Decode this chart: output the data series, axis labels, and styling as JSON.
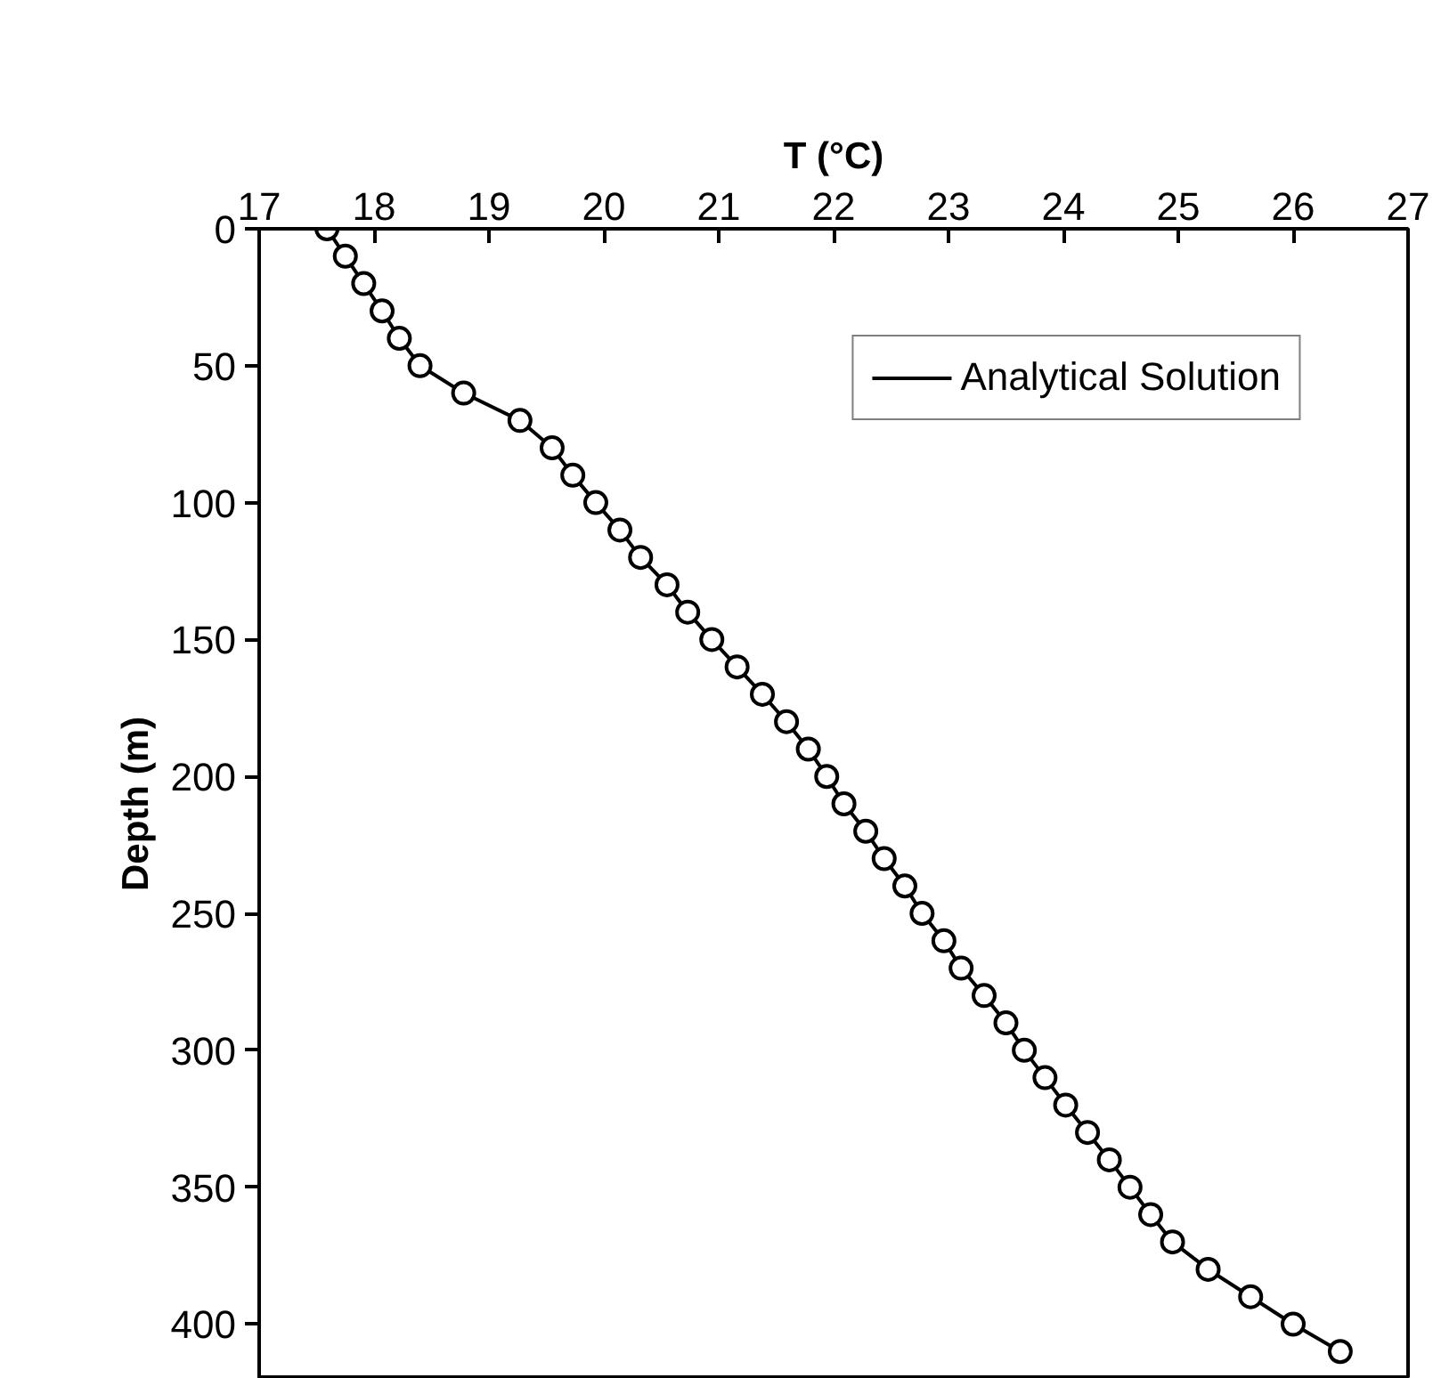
{
  "chart_data": {
    "type": "line",
    "xlabel": "T (°C)",
    "ylabel": "Depth (m)",
    "xlim": [
      17,
      27
    ],
    "xticks": [
      17,
      18,
      19,
      20,
      21,
      22,
      23,
      24,
      25,
      26,
      27
    ],
    "ylim": [
      420,
      0
    ],
    "yticks": [
      0,
      50,
      100,
      150,
      200,
      250,
      300,
      350,
      400
    ],
    "grid": false,
    "legend": "top right",
    "series": [
      {
        "name": "Analytical Solution",
        "color": "#000000",
        "marker": "none",
        "line_style": "solid",
        "x": [
          17.59,
          17.75,
          17.91,
          18.07,
          18.22,
          18.4,
          18.78,
          19.27,
          19.55,
          19.73,
          19.93,
          20.14,
          20.32,
          20.55,
          20.73,
          20.94,
          21.16,
          21.38,
          21.59,
          21.78,
          21.94,
          22.09,
          22.28,
          22.44,
          22.62,
          22.77,
          22.96,
          23.11,
          23.31,
          23.5,
          23.66,
          23.84,
          24.02,
          24.21,
          24.4,
          24.58,
          24.76,
          24.95,
          25.26,
          25.63,
          26.0,
          26.41
        ],
        "values": [
          0,
          10,
          20,
          30,
          40,
          50,
          60,
          70,
          80,
          90,
          100,
          110,
          120,
          130,
          140,
          150,
          160,
          170,
          180,
          190,
          200,
          210,
          220,
          230,
          240,
          250,
          260,
          270,
          280,
          290,
          300,
          310,
          320,
          330,
          340,
          350,
          360,
          370,
          380,
          390,
          400,
          410
        ]
      },
      {
        "type": "scatter",
        "color": "#000000",
        "marker": "circle",
        "x": [
          17.59,
          17.75,
          17.91,
          18.07,
          18.22,
          18.4,
          18.78,
          19.27,
          19.55,
          19.73,
          19.93,
          20.14,
          20.32,
          20.55,
          20.73,
          20.94,
          21.16,
          21.38,
          21.59,
          21.78,
          21.94,
          22.09,
          22.28,
          22.44,
          22.62,
          22.77,
          22.96,
          23.11,
          23.31,
          23.5,
          23.66,
          23.84,
          24.02,
          24.21,
          24.4,
          24.58,
          24.76,
          24.95,
          25.26,
          25.63,
          26.0,
          26.41
        ],
        "values": [
          0,
          10,
          20,
          30,
          40,
          50,
          60,
          70,
          80,
          90,
          100,
          110,
          120,
          130,
          140,
          150,
          160,
          170,
          180,
          190,
          200,
          210,
          220,
          230,
          240,
          250,
          260,
          270,
          280,
          290,
          300,
          310,
          320,
          330,
          340,
          350,
          360,
          370,
          380,
          390,
          400,
          410
        ]
      }
    ]
  }
}
